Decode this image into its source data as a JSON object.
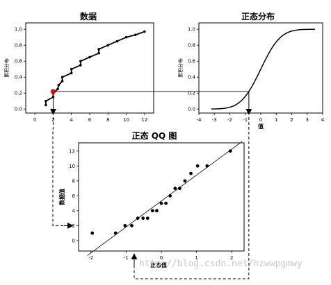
{
  "chart_data": [
    {
      "type": "line",
      "title": "数据",
      "xlabel": "",
      "ylabel": "累积分布",
      "xlim": [
        -1,
        13
      ],
      "ylim": [
        -0.05,
        1.08
      ],
      "xticks": [
        "0",
        "2",
        "4",
        "6",
        "8",
        "10",
        "12"
      ],
      "yticks": [
        "0.0",
        "0.2",
        "0.4",
        "0.6",
        "0.8",
        "1.0"
      ],
      "series": [
        {
          "x": [
            1.2,
            1.2,
            2,
            2,
            2.5,
            2.6,
            3,
            3,
            4,
            4,
            5,
            5,
            6,
            7,
            7,
            8,
            9,
            10,
            11,
            12
          ],
          "y": [
            0.05,
            0.1,
            0.15,
            0.2,
            0.25,
            0.3,
            0.35,
            0.4,
            0.45,
            0.5,
            0.55,
            0.6,
            0.65,
            0.7,
            0.75,
            0.8,
            0.85,
            0.9,
            0.93,
            0.97
          ]
        }
      ],
      "highlight": {
        "x": 2,
        "y": 0.22,
        "color": "#ff0000"
      }
    },
    {
      "type": "line",
      "title": "正态分布",
      "xlabel": "值",
      "ylabel": "累积分布",
      "xlim": [
        -4,
        4
      ],
      "ylim": [
        -0.05,
        1.08
      ],
      "xticks": [
        "-4",
        "-3",
        "-2",
        "-1",
        "0",
        "1",
        "2",
        "3",
        "4"
      ],
      "yticks": [
        "0.0",
        "0.2",
        "0.4",
        "0.6",
        "0.8",
        "1.0"
      ],
      "series": [
        {
          "function": "normal_cdf",
          "x_range": [
            -3.2,
            3.5
          ]
        }
      ],
      "marker_x": -0.77
    },
    {
      "type": "scatter",
      "title": "正态 QQ 图",
      "xlabel": "正态值",
      "ylabel": "数据值",
      "xlim": [
        -2.35,
        2.35
      ],
      "ylim": [
        -1.4,
        13.1
      ],
      "xticks": [
        "-2",
        "-1",
        "0",
        "1",
        "2"
      ],
      "yticks": [
        "0",
        "2",
        "4",
        "6",
        "8",
        "10",
        "12"
      ],
      "series": [
        {
          "x": [
            -1.96,
            -1.3,
            -1.03,
            -0.84,
            -0.67,
            -0.52,
            -0.39,
            -0.25,
            -0.13,
            0,
            0.13,
            0.25,
            0.39,
            0.52,
            0.67,
            0.84,
            1.03,
            1.3,
            1.96
          ],
          "y": [
            1,
            1,
            2,
            2,
            3,
            3,
            3,
            4,
            4,
            5,
            5,
            6,
            7,
            7,
            8,
            9,
            10,
            10,
            12
          ]
        }
      ],
      "reference_line": {
        "intercept": 5.3,
        "slope": 3.48
      },
      "marker_x": -0.77
    }
  ],
  "colors": {
    "highlight": "#ff0000",
    "ink": "#000000"
  },
  "watermark": "http://blog.csdn.net/hzwwpgmwy"
}
